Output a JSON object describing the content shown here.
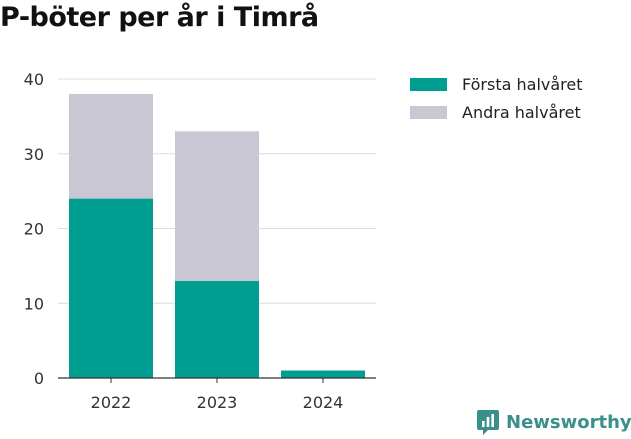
{
  "title": "P-böter per år i Timrå",
  "brand": "Newsworthy",
  "colors": {
    "first_half": "#009e91",
    "second_half": "#c9c7d3",
    "brand": "#3a8f8a"
  },
  "chart_data": {
    "type": "bar",
    "stacked": true,
    "title": "P-böter per år i Timrå",
    "categories": [
      "2022",
      "2023",
      "2024"
    ],
    "series": [
      {
        "name": "Första halvåret",
        "color": "#009e91",
        "values": [
          24,
          13,
          1
        ]
      },
      {
        "name": "Andra halvåret",
        "color": "#c9c7d3",
        "values": [
          14,
          20,
          0
        ]
      }
    ],
    "xlabel": "",
    "ylabel": "",
    "ylim": [
      0,
      40
    ],
    "yticks": [
      0,
      10,
      20,
      30,
      40
    ],
    "grid": true,
    "legend": "top-right"
  }
}
